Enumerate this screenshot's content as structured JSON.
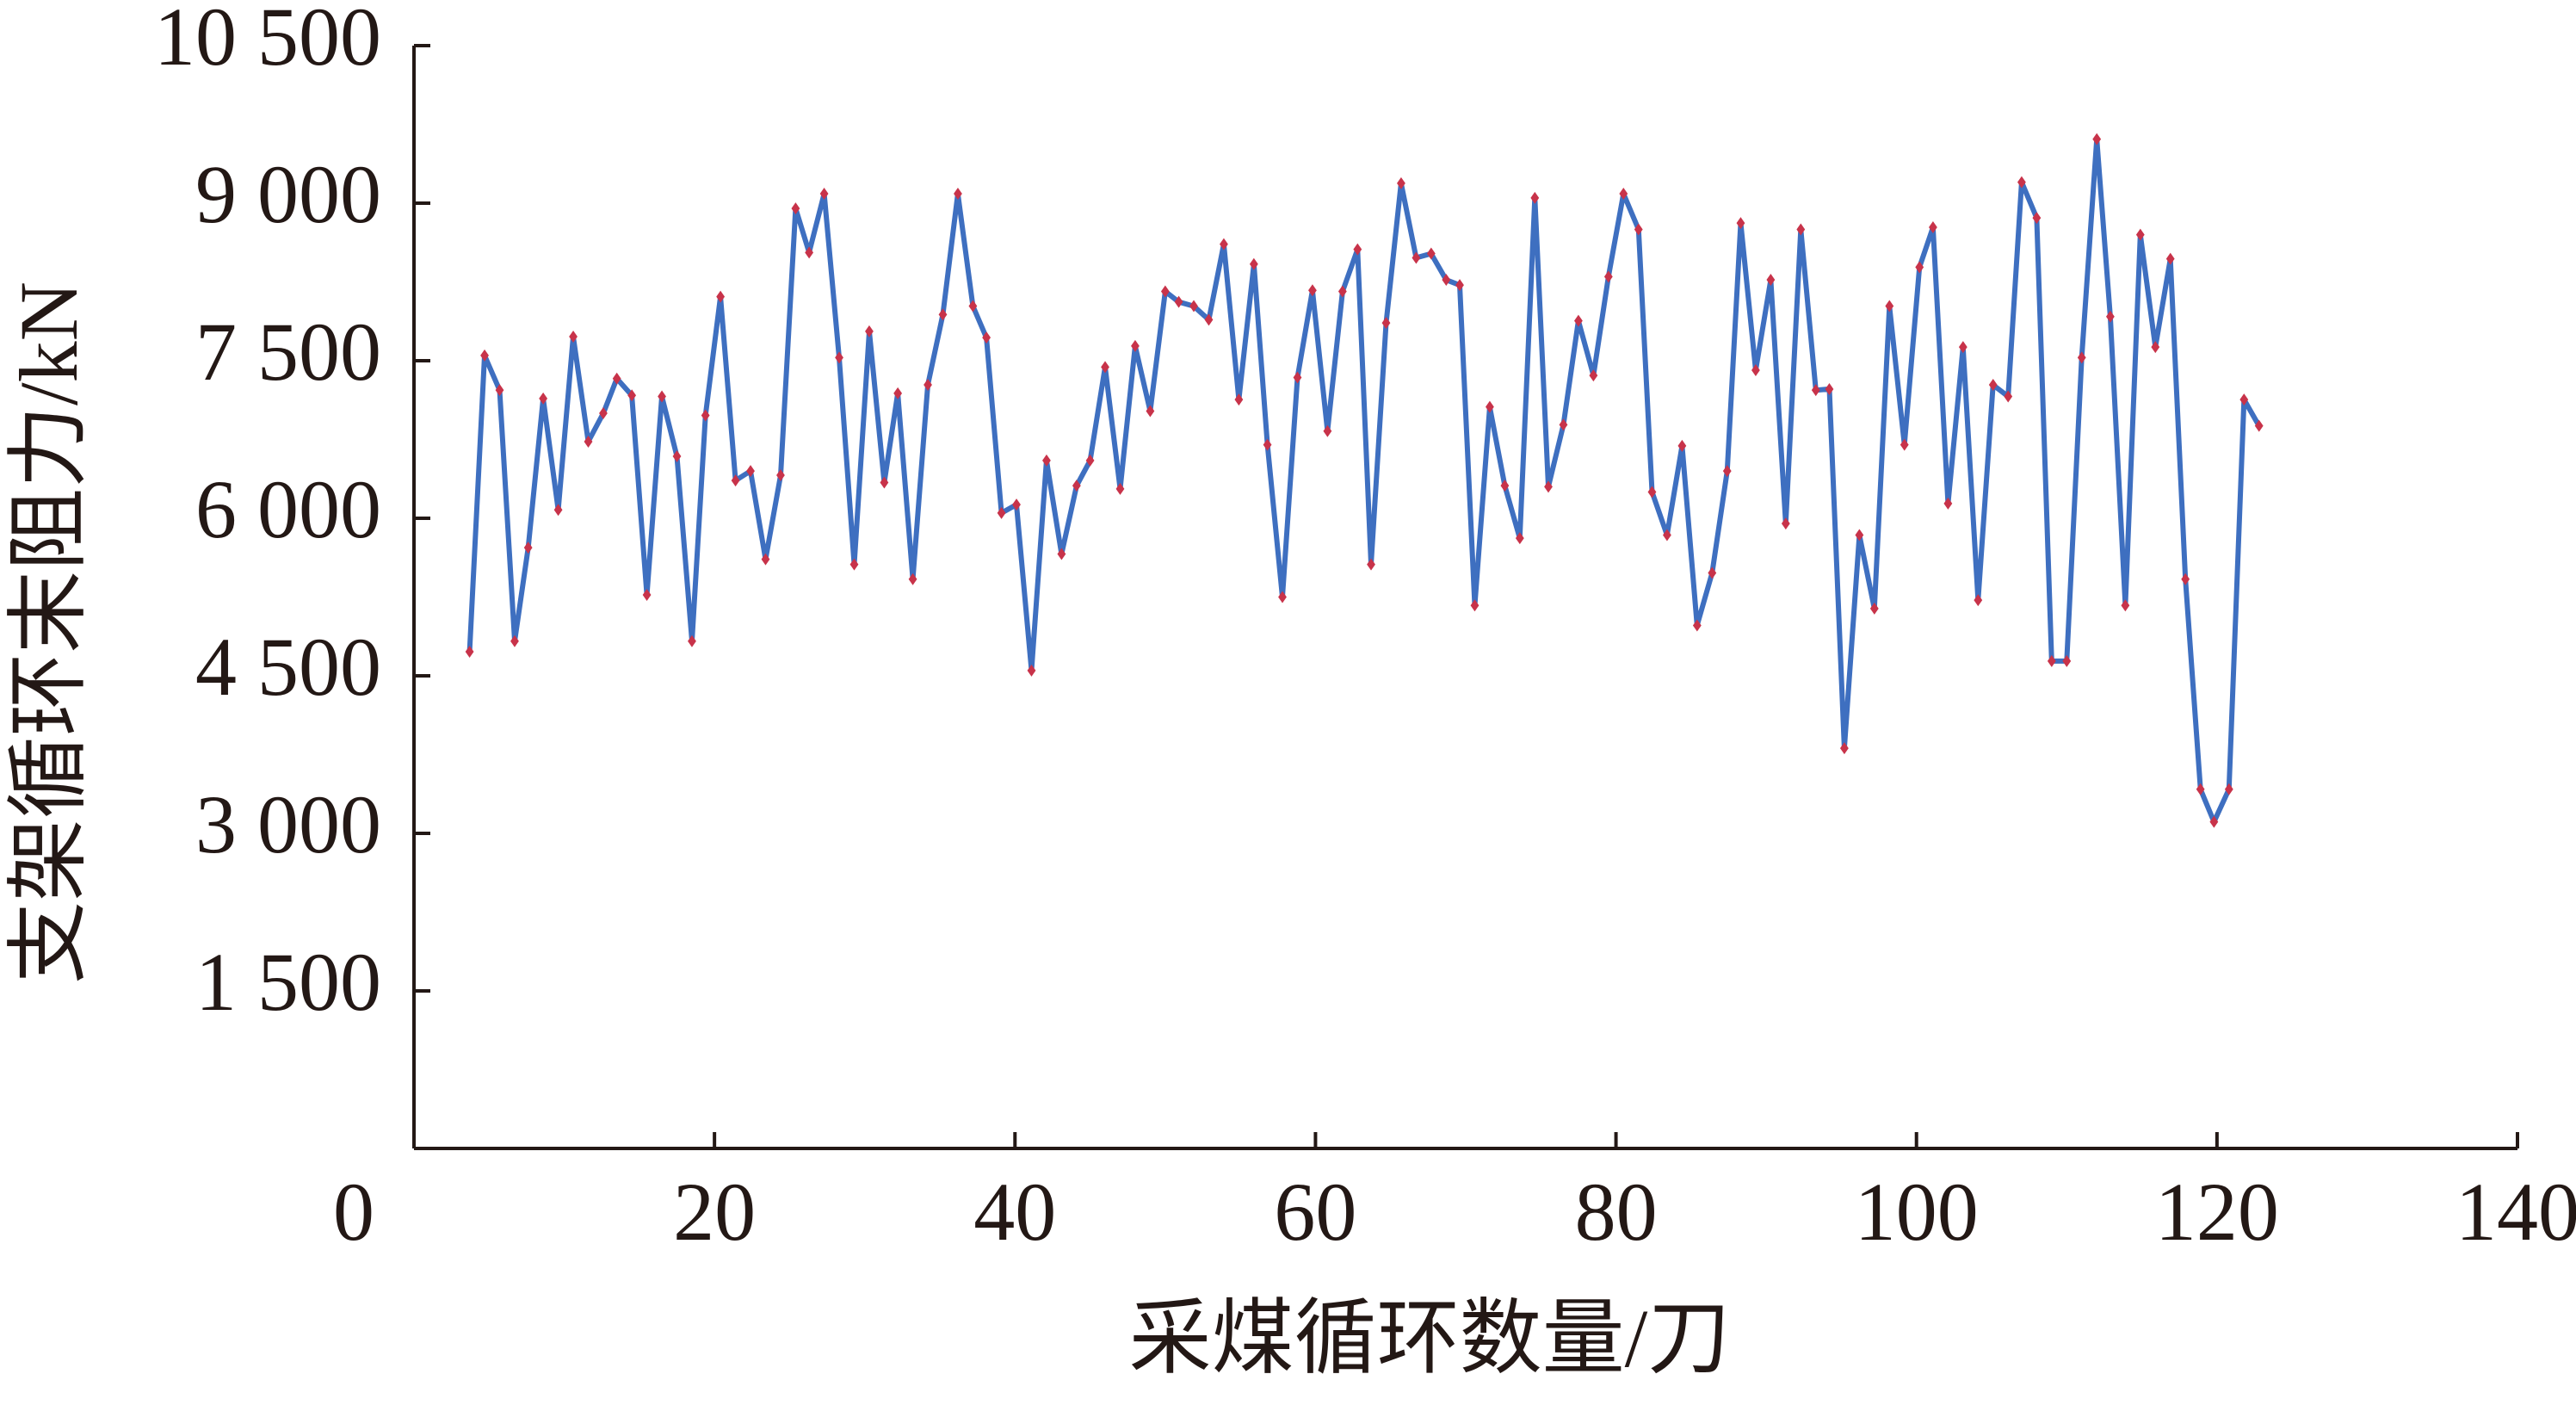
{
  "chart_data": {
    "type": "line",
    "xlabel": "采煤循环数量/刀",
    "ylabel": "支架循环末阻力/kN",
    "xlim": [
      0,
      140
    ],
    "xticks": [
      0,
      20,
      40,
      60,
      80,
      100,
      120,
      140
    ],
    "ylim": [
      0,
      10500
    ],
    "yticks": [
      {
        "value": 1500,
        "label": "1 500"
      },
      {
        "value": 3000,
        "label": "3 000"
      },
      {
        "value": 4500,
        "label": "4 500"
      },
      {
        "value": 6000,
        "label": "6 000"
      },
      {
        "value": 7500,
        "label": "7 500"
      },
      {
        "value": 9000,
        "label": "9 000"
      },
      {
        "value": 10500,
        "label": "10 500"
      }
    ],
    "grid": false,
    "color": "#3e6fc0",
    "marker_color": "#c8334a",
    "x": [
      3.7,
      4.7,
      5.7,
      6.7,
      7.6,
      8.6,
      9.6,
      10.6,
      11.6,
      12.6,
      13.5,
      14.5,
      15.5,
      16.5,
      17.5,
      18.5,
      19.4,
      20.4,
      21.4,
      22.4,
      23.4,
      24.4,
      25.4,
      26.3,
      27.3,
      28.3,
      29.3,
      30.3,
      31.3,
      32.2,
      33.2,
      34.2,
      35.2,
      36.2,
      37.2,
      38.1,
      39.1,
      40.1,
      41.1,
      42.1,
      43.1,
      44.1,
      45.0,
      46.0,
      47.0,
      48.0,
      49.0,
      50.0,
      50.9,
      51.9,
      52.9,
      53.9,
      54.9,
      55.9,
      56.8,
      57.8,
      58.8,
      59.8,
      60.8,
      61.8,
      62.8,
      63.7,
      64.7,
      65.7,
      66.7,
      67.7,
      68.7,
      69.6,
      70.6,
      71.6,
      72.6,
      73.6,
      74.6,
      75.5,
      76.5,
      77.5,
      78.5,
      79.5,
      80.5,
      81.5,
      82.4,
      83.4,
      84.4,
      85.4,
      86.4,
      87.4,
      88.3,
      89.3,
      90.3,
      91.3,
      92.3,
      93.3,
      94.2,
      95.2,
      96.2,
      97.2,
      98.2,
      99.2,
      100.2,
      101.1,
      102.1,
      103.1,
      104.1,
      105.1,
      106.1,
      107,
      108,
      109,
      110,
      111,
      112,
      112.9,
      113.9,
      114.9,
      115.9,
      116.9,
      117.9,
      118.9,
      119.8,
      120.8,
      121.8,
      122.8
    ],
    "values": [
      4730,
      7550,
      7220,
      4830,
      5720,
      7140,
      6080,
      7730,
      6730,
      7000,
      7330,
      7170,
      5270,
      7160,
      6590,
      4830,
      6980,
      8110,
      6360,
      6450,
      5610,
      6410,
      8950,
      8530,
      9090,
      7530,
      5560,
      7780,
      6340,
      7190,
      5420,
      7270,
      7940,
      9090,
      8020,
      7720,
      6050,
      6130,
      4550,
      6550,
      5660,
      6310,
      6550,
      7440,
      6280,
      7640,
      7020,
      8160,
      8060,
      8020,
      7890,
      8610,
      7130,
      8420,
      6700,
      5250,
      7340,
      8170,
      6830,
      8160,
      8560,
      5560,
      7860,
      9190,
      8480,
      8520,
      8270,
      8220,
      5170,
      7060,
      6310,
      5810,
      9050,
      6300,
      6890,
      7880,
      7360,
      8300,
      9090,
      8750,
      6250,
      5840,
      6690,
      4980,
      5480,
      6450,
      8810,
      7410,
      8270,
      5950,
      8750,
      7220,
      7230,
      3810,
      5840,
      5140,
      8020,
      6700,
      8390,
      8770,
      6140,
      7630,
      5220,
      7270,
      7160,
      9200,
      8860,
      4640,
      4640,
      7530,
      9610,
      7920,
      5170,
      8700,
      7630,
      8470,
      5420,
      3420,
      3110,
      3420,
      7130,
      6880
    ]
  }
}
